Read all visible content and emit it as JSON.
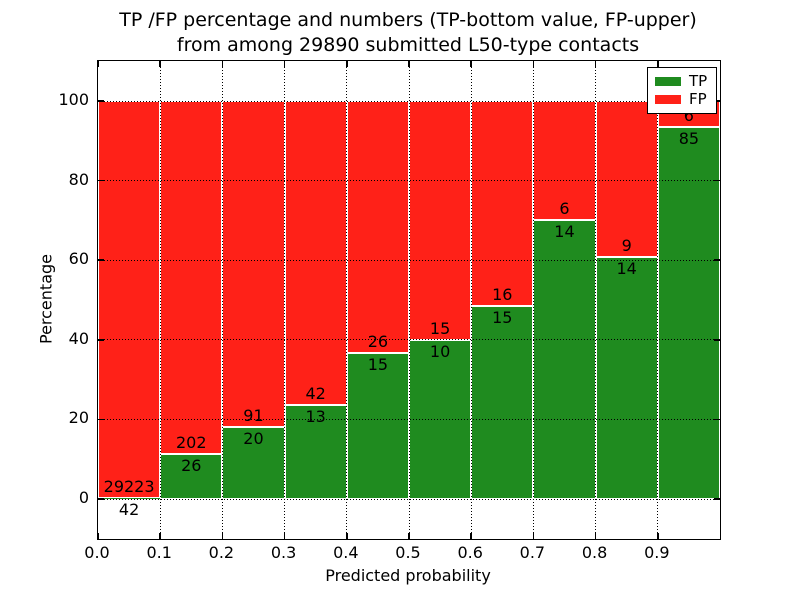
{
  "chart_data": {
    "type": "bar",
    "subtype": "stacked-percentage-histogram",
    "title_lines": [
      "TP /FP percentage and numbers (TP-bottom value, FP-upper)",
      "from among 29890 submitted L50-type contacts"
    ],
    "xlabel": "Predicted probability",
    "ylabel": "Percentage",
    "xlim": [
      0.0,
      1.0
    ],
    "ylim": [
      -10,
      110
    ],
    "grid": "dotted-black-both-axes",
    "bin_width": 0.1,
    "bin_starts": [
      0.0,
      0.1,
      0.2,
      0.3,
      0.4,
      0.5,
      0.6,
      0.7,
      0.8,
      0.9
    ],
    "xtick_labels": [
      "0.0",
      "0.1",
      "0.2",
      "0.3",
      "0.4",
      "0.5",
      "0.6",
      "0.7",
      "0.8",
      "0.9"
    ],
    "ytick_values": [
      0,
      20,
      40,
      60,
      80,
      100
    ],
    "total_contacts": 29890,
    "series": [
      {
        "name": "TP",
        "color": "#1f8b1f",
        "counts": [
          42,
          26,
          20,
          13,
          15,
          10,
          15,
          14,
          14,
          85
        ]
      },
      {
        "name": "FP",
        "color": "#ff2118",
        "counts": [
          29223,
          202,
          91,
          42,
          26,
          15,
          16,
          6,
          9,
          6
        ]
      }
    ],
    "tp_percent_heights": [
      0.14,
      11.4,
      18.02,
      23.64,
      36.59,
      40.0,
      48.39,
      70.0,
      60.87,
      93.41
    ],
    "annotation_note": "FP count printed just above each TP/FP boundary, TP count just below",
    "legend": {
      "position": "upper-right",
      "entries": [
        {
          "label": "TP",
          "color": "#1f8b1f"
        },
        {
          "label": "FP",
          "color": "#ff2118"
        }
      ]
    }
  }
}
